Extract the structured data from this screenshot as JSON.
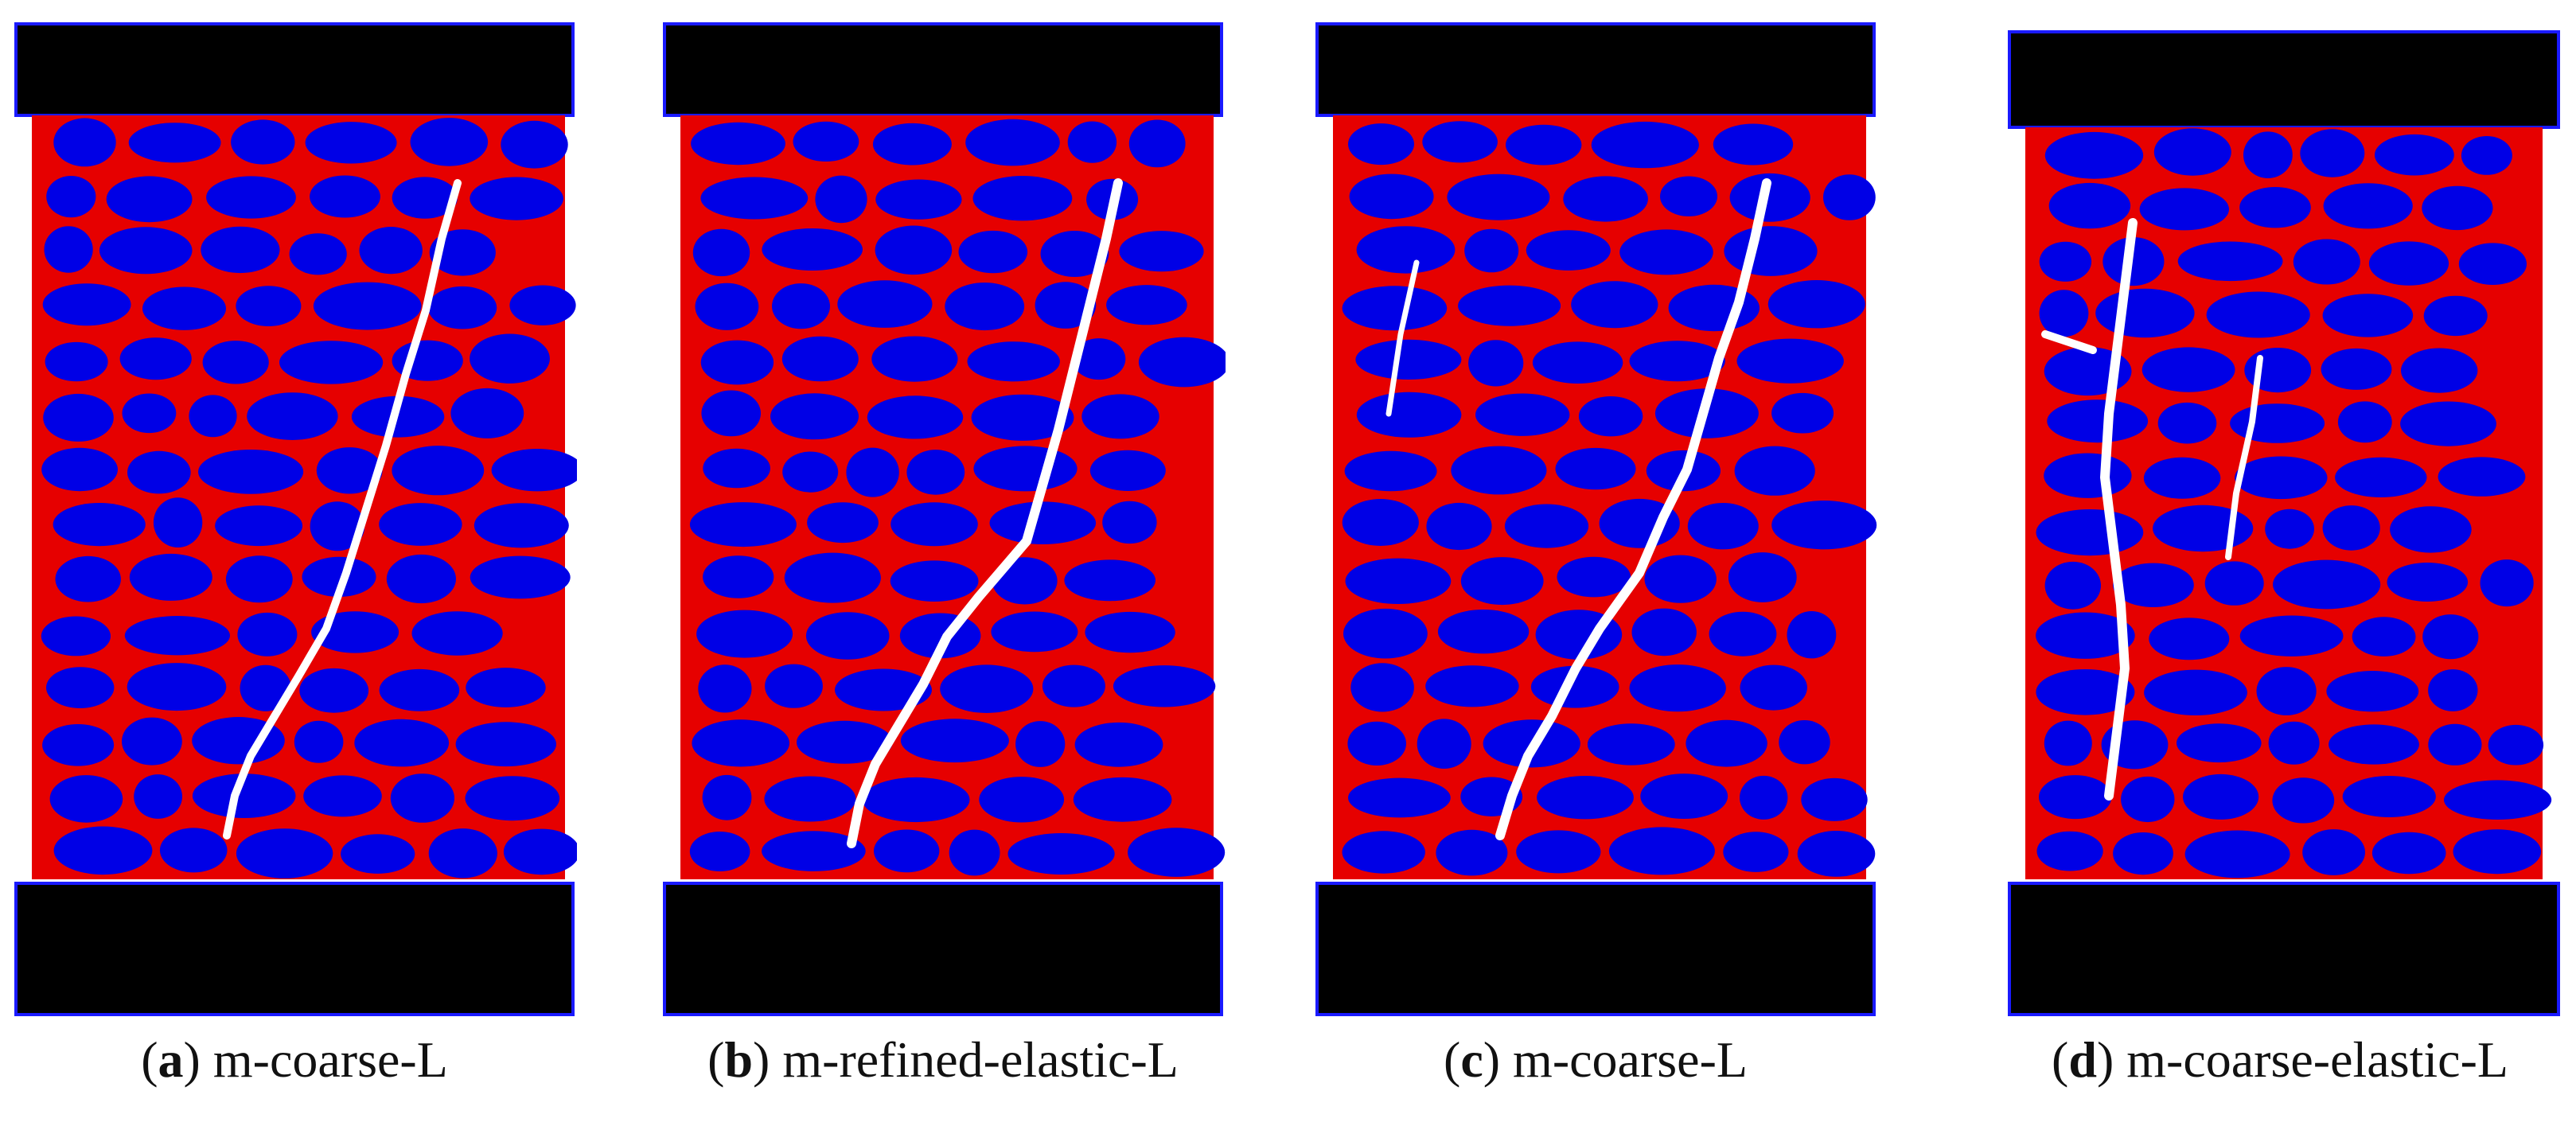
{
  "panels": [
    {
      "letter": "a",
      "label": "m-coarse-L"
    },
    {
      "letter": "b",
      "label": "m-refined-elastic-L"
    },
    {
      "letter": "c",
      "label": "m-coarse-L"
    },
    {
      "letter": "d",
      "label": "m-coarse-elastic-L"
    }
  ],
  "colors": {
    "aggregate": "#0000e6",
    "matrix": "#e60000",
    "platen": "#000000",
    "platen_border": "#1a1aff",
    "crack": "#ffffff"
  }
}
